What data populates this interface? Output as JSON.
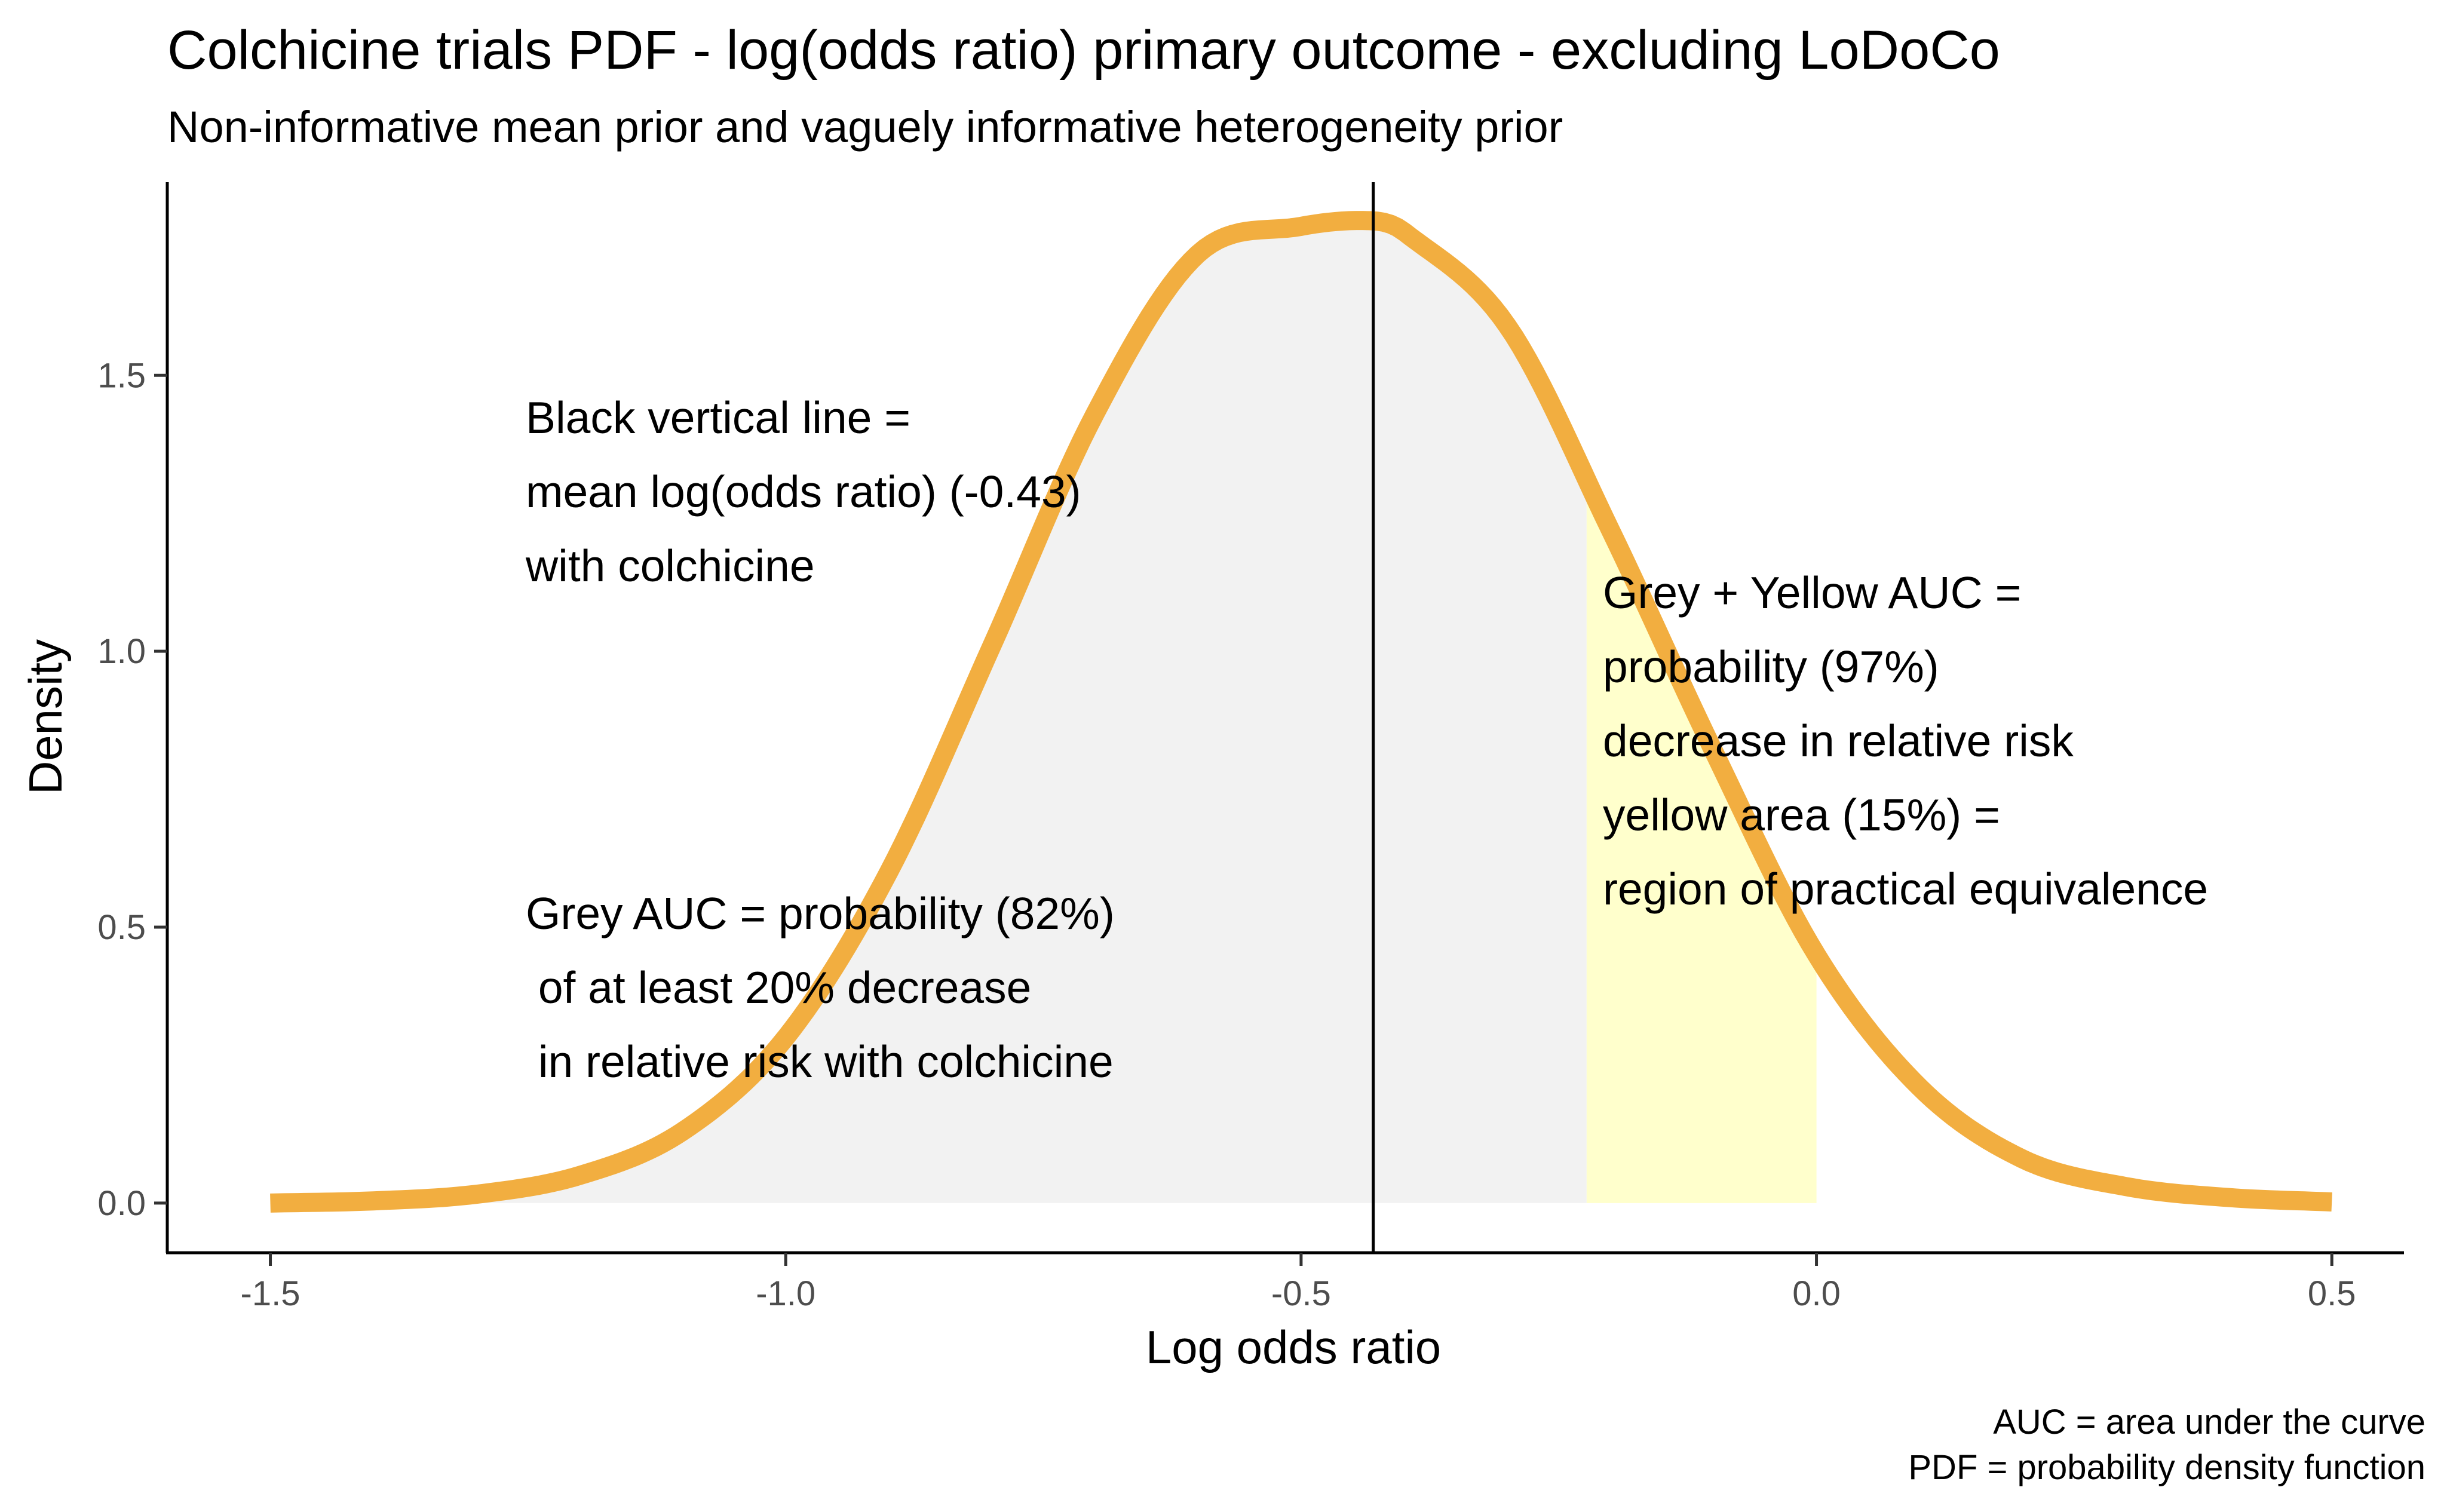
{
  "chart_data": {
    "type": "area",
    "title": "Colchicine trials PDF - log(odds ratio) primary outcome - excluding LoDoCo",
    "subtitle": "Non-informative mean prior and vaguely informative heterogeneity prior",
    "xlabel": "Log odds ratio",
    "ylabel": "Density",
    "xlim": [
      -1.6,
      0.57
    ],
    "ylim": [
      -0.09,
      1.85
    ],
    "x_ticks": [
      -1.5,
      -1.0,
      -0.5,
      0.0,
      0.5
    ],
    "x_tick_labels": [
      "-1.5",
      "-1.0",
      "-0.5",
      "0.0",
      "0.5"
    ],
    "y_ticks": [
      0.0,
      0.5,
      1.0,
      1.5
    ],
    "y_tick_labels": [
      "0.0",
      "0.5",
      "1.0",
      "1.5"
    ],
    "grid": false,
    "curve": {
      "x": [
        -1.5,
        -1.4,
        -1.3,
        -1.2,
        -1.1,
        -1.0,
        -0.9,
        -0.8,
        -0.7,
        -0.6,
        -0.5,
        -0.43,
        -0.4,
        -0.3,
        -0.2,
        -0.1,
        0.0,
        0.1,
        0.2,
        0.3,
        0.4,
        0.5
      ],
      "y": [
        0.0,
        0.004,
        0.016,
        0.05,
        0.13,
        0.3,
        0.6,
        1.01,
        1.43,
        1.72,
        1.77,
        1.78,
        1.76,
        1.59,
        1.22,
        0.82,
        0.45,
        0.21,
        0.08,
        0.03,
        0.01,
        0.002
      ],
      "color": "#f2ae40"
    },
    "mean_line": {
      "x": -0.43,
      "color": "#000000"
    },
    "grey_region": {
      "from": -1.5,
      "to": -0.223,
      "color": "#f2f2f2"
    },
    "yellow_region": {
      "from": -0.223,
      "to": 0.0,
      "color": "#ffffcc"
    },
    "annotations": [
      {
        "id": "mean",
        "lines": [
          "Black vertical line =",
          "mean log(odds ratio) (-0.43)",
          "with colchicine"
        ]
      },
      {
        "id": "grey-auc",
        "lines": [
          "Grey AUC = probability (82%)",
          " of at least 20% decrease",
          " in relative risk with colchicine"
        ]
      },
      {
        "id": "yellow-auc",
        "lines": [
          "Grey + Yellow AUC =",
          "probability (97%)",
          "decrease in relative risk",
          "yellow area (15%) =",
          "region of practical equivalence"
        ]
      }
    ],
    "caption": [
      "AUC = area under the curve",
      "PDF = probability density function"
    ]
  }
}
